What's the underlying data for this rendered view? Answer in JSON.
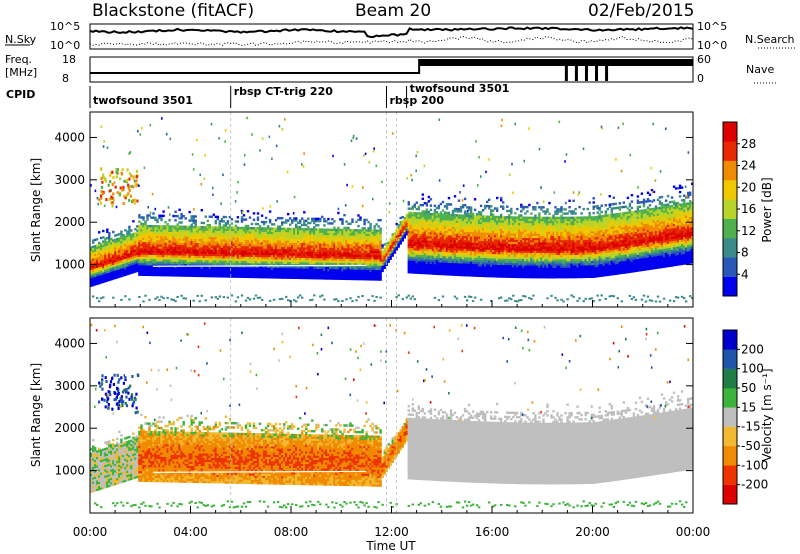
{
  "header": {
    "title": "Blackstone (fitACF)",
    "beam": "Beam 20",
    "date": "02/Feb/2015"
  },
  "top_panels": {
    "nsky_label": "N.Sky",
    "nsky_ticks": [
      "10^5",
      "10^0"
    ],
    "nsearch_label": "N.Search",
    "nsearch_ticks": [
      "10^5",
      "10^0"
    ],
    "freq_label_1": "Freq.",
    "freq_label_2": "[MHz]",
    "freq_ticks": [
      "18",
      "8"
    ],
    "nave_label": "Nave",
    "nave_ticks": [
      "60",
      "0"
    ],
    "cpid_label": "CPID"
  },
  "cpid_segments": [
    {
      "name": "twofsound 3501",
      "start_hour": 0.0,
      "end_hour": 5.6
    },
    {
      "name": "rbsp CT-trig 220",
      "start_hour": 5.6,
      "end_hour": 11.8
    },
    {
      "name": "rbsp 200",
      "start_hour": 11.8,
      "end_hour": 12.6
    },
    {
      "name": "twofsound 3501",
      "start_hour": 12.6,
      "end_hour": 24.0
    }
  ],
  "chart_data": [
    {
      "type": "heatmap",
      "quantity": "Power",
      "ylabel": "Slant Range [km]",
      "ylim": [
        0,
        4600
      ],
      "yticks": [
        "4000",
        "3000",
        "2000",
        "1000"
      ],
      "xlim_hours": [
        0,
        24
      ],
      "colorbar": {
        "label": "Power [dB]",
        "ticks": [
          "28",
          "24",
          "20",
          "16",
          "12",
          "8",
          "4"
        ],
        "range": [
          0,
          32
        ]
      },
      "bands": [
        {
          "start_hour": 0.0,
          "end_hour": 1.8,
          "center_km": [
            900,
            1300
          ],
          "dominant": "orange"
        },
        {
          "start_hour": 2.0,
          "end_hour": 11.5,
          "center_km": [
            1100,
            1200
          ],
          "dominant": "orange-red"
        },
        {
          "start_hour": 12.5,
          "end_hour": 24.0,
          "center_km": [
            1400,
            1500
          ],
          "dominant": "red-orange"
        }
      ]
    },
    {
      "type": "heatmap",
      "quantity": "Velocity",
      "ylabel": "Slant Range [km]",
      "ylim": [
        0,
        4600
      ],
      "yticks": [
        "4000",
        "3000",
        "2000",
        "1000"
      ],
      "xlim_hours": [
        0,
        24
      ],
      "colorbar": {
        "label": "Velocity [m s⁻¹]",
        "ticks": [
          "200",
          "100",
          "50",
          "15",
          "-15",
          "-50",
          "-100",
          "-200"
        ],
        "range": [
          -250,
          250
        ]
      },
      "bands": [
        {
          "start_hour": 2.0,
          "end_hour": 11.5,
          "center_km": [
            1300,
            1500
          ],
          "dominant": "red-orange (negative)"
        },
        {
          "start_hour": 12.5,
          "end_hour": 24.0,
          "center_km": [
            1400,
            1600
          ],
          "dominant": "grey (near zero)"
        }
      ]
    }
  ],
  "xaxis": {
    "ticks": [
      "00:00",
      "04:00",
      "08:00",
      "12:00",
      "16:00",
      "20:00",
      "00:00"
    ],
    "label": "Time UT"
  },
  "colors": {
    "power_scale": [
      "#0000ee",
      "#2a58b8",
      "#3a8a8a",
      "#4fb04f",
      "#b8d428",
      "#f0c800",
      "#f08a00",
      "#e82800",
      "#dd0000"
    ],
    "velocity_scale": [
      "#dd0000",
      "#ee3300",
      "#f08a00",
      "#f2b830",
      "#bfbfbf",
      "#3cb43c",
      "#1f7d46",
      "#1f55aa",
      "#0000cc"
    ]
  }
}
